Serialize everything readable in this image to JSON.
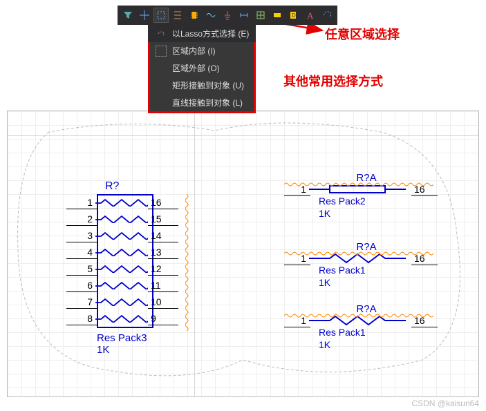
{
  "toolbar": {
    "tools": [
      "filter",
      "crosshair",
      "rect-select",
      "align",
      "chip",
      "wave",
      "ground",
      "measure",
      "grid",
      "highlight",
      "note",
      "text",
      "lasso"
    ]
  },
  "dropdown": {
    "items": [
      {
        "label": "以Lasso方式选择 (E)",
        "icon": "lasso"
      },
      {
        "label": "区域内部 (I)",
        "icon": "rect"
      },
      {
        "label": "区域外部 (O)",
        "icon": "none"
      },
      {
        "label": "矩形接触到对象 (U)",
        "icon": "none"
      },
      {
        "label": "直线接触到对象 (L)",
        "icon": "none"
      }
    ]
  },
  "annotations": {
    "arbitrary_select": "任意区域选择",
    "other_methods": "其他常用选择方式",
    "arrow_color": "#e20000"
  },
  "components": {
    "respack3": {
      "ref": "R?",
      "name": "Res Pack3",
      "value": "1K",
      "pins_left": [
        "1",
        "2",
        "3",
        "4",
        "5",
        "6",
        "7",
        "8"
      ],
      "pins_right": [
        "16",
        "15",
        "14",
        "13",
        "12",
        "11",
        "10",
        "9"
      ],
      "color": "#0000cc"
    },
    "respack2": {
      "ref": "R?A",
      "name": "Res Pack2",
      "value": "1K",
      "pin_l": "1",
      "pin_r": "16"
    },
    "respack1a": {
      "ref": "R?A",
      "name": "Res Pack1",
      "value": "1K",
      "pin_l": "1",
      "pin_r": "16"
    },
    "respack1b": {
      "ref": "R?A",
      "name": "Res Pack1",
      "value": "1K",
      "pin_l": "1",
      "pin_r": "16"
    }
  },
  "watermark": "CSDN @kaisun64",
  "colors": {
    "component_blue": "#0000cc",
    "error_orange": "#ff8800",
    "annotation_red": "#e20000",
    "toolbar_bg": "#2d2d30"
  }
}
